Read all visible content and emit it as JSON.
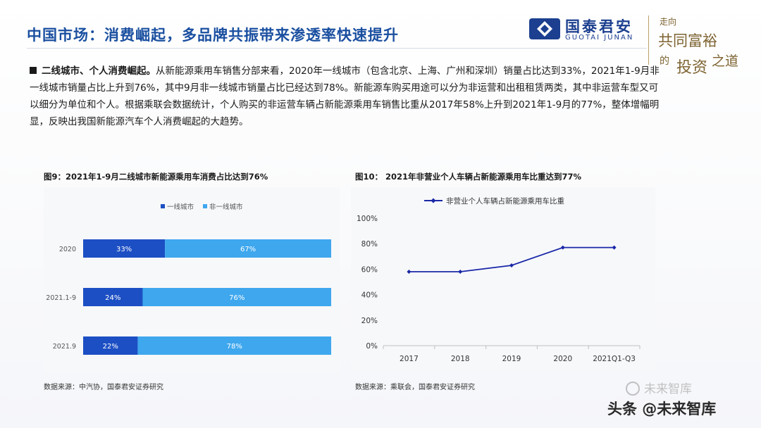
{
  "header": {
    "title": "中国市场：消费崛起，多品牌共振带来渗透率快速提升",
    "logo_cn": "国泰君安",
    "logo_en": "GUOTAI JUNAN",
    "slogan_lines": [
      "走向",
      "共同富裕",
      "的",
      "投资",
      "之道"
    ],
    "brand_color": "#1c3f8f"
  },
  "bullet": {
    "lead": "二线城市、个人消费崛起。",
    "text": "从新能源乘用车销售分部来看，2020年一线城市（包含北京、上海、广州和深圳）销量占比达到33%，2021年1-9月非一线城市销量占比上升到76%，其中9月非一线城市销量占比已经达到78%。新能源车购买用途可以分为非运营和出租租赁两类，其中非运营车型又可以细分为单位和个人。根据乘联会数据统计，个人购买的非运营车辆占新能源乘用车销售比重从2017年58%上升到2021年1-9月的77%，整体增幅明显，反映出我国新能源汽车个人消费崛起的大趋势。"
  },
  "figures": {
    "fig9_title": "图9：2021年1-9月二线城市新能源乘用车消费占比达到76%",
    "fig10_title": "图10：  2021年非营业个人车辆占新能源乘用车比重达到77%",
    "fig9_source": "数据来源：中汽协，国泰君安证券研究",
    "fig10_source": "数据来源：乘联会，国泰君安证券研究"
  },
  "chart_data": [
    {
      "type": "bar",
      "orientation": "horizontal",
      "stacked": true,
      "categories": [
        "2020",
        "2021.1-9",
        "2021.9"
      ],
      "series": [
        {
          "name": "一线城市",
          "values": [
            33,
            24,
            22
          ],
          "labels": [
            "33%",
            "24%",
            "22%"
          ],
          "color": "#1c4fc4"
        },
        {
          "name": "非一线城市",
          "values": [
            67,
            76,
            78
          ],
          "labels": [
            "67%",
            "76%",
            "78%"
          ],
          "color": "#3ea7ee"
        }
      ],
      "xlim": [
        0,
        100
      ],
      "legend": "top",
      "grid": false
    },
    {
      "type": "line",
      "x": [
        "2017",
        "2018",
        "2019",
        "2020",
        "2021Q1-Q3"
      ],
      "series": [
        {
          "name": "非营业个人车辆占新能源乘用车比重",
          "values": [
            58,
            58,
            63,
            77,
            77
          ],
          "color": "#1a28a8"
        }
      ],
      "ylim": [
        0,
        100
      ],
      "yticks": [
        "0%",
        "20%",
        "40%",
        "60%",
        "80%",
        "100%"
      ],
      "legend": "top",
      "grid": false
    }
  ]
}
